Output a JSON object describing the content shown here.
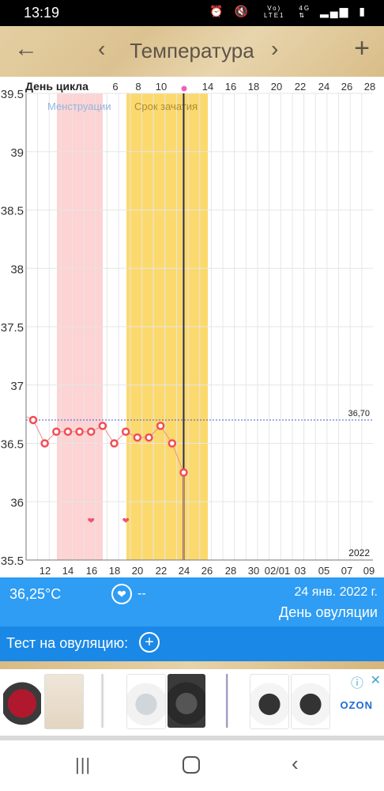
{
  "status_bar": {
    "time": "13:19",
    "net_top": "Vo)",
    "net_mid": "LTE1",
    "net_4g": "4G"
  },
  "header": {
    "title": "Температура",
    "back": "←",
    "add": "+",
    "prev": "‹",
    "next": "›"
  },
  "chart_data": {
    "type": "line",
    "ylim": [
      35.5,
      39.5
    ],
    "y_ticks": [
      35.5,
      36,
      36.5,
      37,
      37.5,
      38,
      38.5,
      39,
      39.5
    ],
    "y_tick_labels": [
      "35.5",
      "36",
      "36.5",
      "37",
      "37.5",
      "38",
      "38.5",
      "39",
      "39.5"
    ],
    "bottom_ticks": [
      "12",
      "14",
      "16",
      "18",
      "20",
      "22",
      "24",
      "26",
      "28",
      "30",
      "02/01",
      "03",
      "05",
      "07",
      "09"
    ],
    "top_label": "День цикла",
    "top_ticks": [
      "6",
      "8",
      "10",
      "14",
      "16",
      "18",
      "20",
      "22",
      "24",
      "26",
      "28"
    ],
    "year_label": "2022",
    "cover_line": {
      "value": 36.7,
      "label": "36,70"
    },
    "x": [
      "11",
      "12",
      "13",
      "14",
      "15",
      "16",
      "17",
      "18",
      "19",
      "20",
      "21",
      "22",
      "23",
      "24"
    ],
    "series": [
      {
        "values": [
          36.7,
          36.5,
          36.6,
          36.6,
          36.6,
          36.6,
          36.65,
          36.5,
          36.6,
          36.55,
          36.55,
          36.65,
          36.5,
          36.25
        ]
      }
    ],
    "menstruation": {
      "label": "Менструации"
    },
    "fertile": {
      "label": "Срок зачатия"
    },
    "hearts": [
      "16",
      "19"
    ],
    "colors": {
      "menstruation": "#fdd3d3",
      "fertile": "#fbd96c",
      "line": "#f08b8b",
      "marker": "#f24d55",
      "cover": "#4a55d6",
      "selected": "#2b2d52"
    }
  },
  "info_bar": {
    "temperature": "36,25°C",
    "heart_icon": "heart-icon",
    "dash": "--",
    "date": "24 янв. 2022 г.",
    "day_label": "День овуляции"
  },
  "test_bar": {
    "label": "Тест на овуляцию:",
    "add": "+"
  },
  "ad": {
    "info": "ⓘ",
    "close": "✕",
    "brand": "OZON"
  },
  "nav": {
    "recent": "|||",
    "back": "‹"
  }
}
